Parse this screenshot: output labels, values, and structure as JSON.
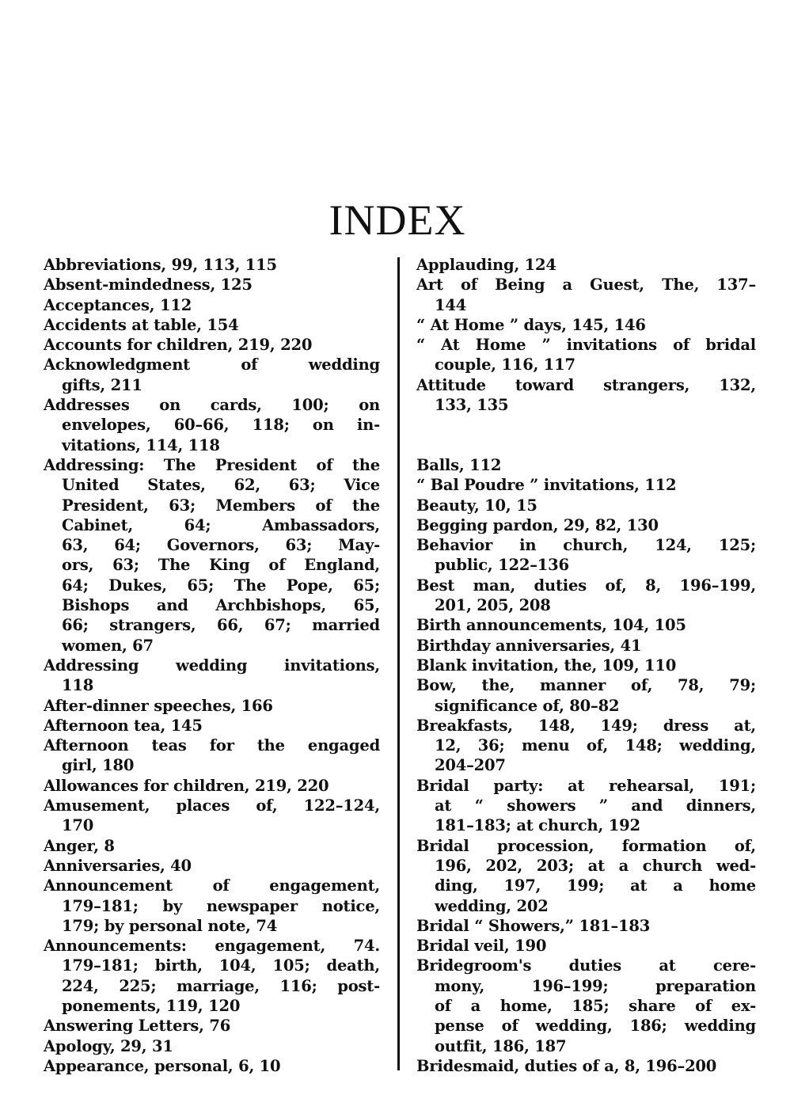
{
  "page": {
    "title": "INDEX"
  },
  "columns": [
    {
      "groups": [
        {
          "entries": [
            {
              "lines": [
                "Abbreviations, 99, 113, 115"
              ]
            },
            {
              "lines": [
                "Absent-mindedness, 125"
              ]
            },
            {
              "lines": [
                "Acceptances, 112"
              ]
            },
            {
              "lines": [
                "Accidents at table, 154"
              ]
            },
            {
              "lines": [
                "Accounts for children, 219, 220"
              ]
            },
            {
              "lines": [
                "Acknowledgment of wedding",
                "gifts, 211"
              ]
            },
            {
              "lines": [
                "Addresses on cards, 100; on",
                "envelopes, 60–66, 118; on in-",
                "vitations, 114, 118"
              ]
            },
            {
              "lines": [
                "Addressing: The President of the",
                "United States, 62, 63; Vice",
                "President, 63; Members of the",
                "Cabinet, 64; Ambassadors,",
                "63, 64; Governors, 63; May-",
                "ors, 63; The King of England,",
                "64; Dukes, 65; The Pope, 65;",
                "Bishops and Archbishops, 65,",
                "66; strangers, 66, 67; married",
                "women, 67"
              ]
            },
            {
              "lines": [
                "Addressing wedding invitations,",
                "118"
              ]
            },
            {
              "lines": [
                "After-dinner speeches, 166"
              ]
            },
            {
              "lines": [
                "Afternoon tea, 145"
              ]
            },
            {
              "lines": [
                "Afternoon teas for the engaged",
                "girl, 180"
              ]
            },
            {
              "lines": [
                "Allowances for children, 219, 220"
              ]
            },
            {
              "lines": [
                "Amusement, places of, 122–124,",
                "170"
              ]
            },
            {
              "lines": [
                "Anger, 8"
              ]
            },
            {
              "lines": [
                "Anniversaries, 40"
              ]
            },
            {
              "lines": [
                "Announcement of engagement,",
                "179–181; by newspaper notice,",
                "179; by personal note, 74"
              ]
            },
            {
              "lines": [
                "Announcements: engagement, 74.",
                "179–181; birth, 104, 105; death,",
                "224, 225; marriage, 116; post-",
                "ponements, 119, 120"
              ]
            },
            {
              "lines": [
                "Answering Letters, 76"
              ]
            },
            {
              "lines": [
                "Apology, 29, 31"
              ]
            },
            {
              "lines": [
                "Appearance, personal, 6, 10"
              ]
            }
          ]
        }
      ]
    },
    {
      "groups": [
        {
          "entries": [
            {
              "lines": [
                "Applauding, 124"
              ]
            },
            {
              "lines": [
                "Art of Being a Guest, The, 137–",
                "144"
              ]
            },
            {
              "lines": [
                "“ At Home ” days, 145, 146"
              ]
            },
            {
              "lines": [
                "“ At Home ” invitations of bridal",
                "couple, 116, 117"
              ]
            },
            {
              "lines": [
                "Attitude toward strangers, 132,",
                "133, 135"
              ]
            }
          ]
        },
        {
          "entries": [
            {
              "lines": [
                "Balls, 112"
              ]
            },
            {
              "lines": [
                "“ Bal Poudre ” invitations, 112"
              ]
            },
            {
              "lines": [
                "Beauty, 10, 15"
              ]
            },
            {
              "lines": [
                "Begging pardon, 29, 82, 130"
              ]
            },
            {
              "lines": [
                "Behavior in church, 124, 125;",
                "public, 122–136"
              ]
            },
            {
              "lines": [
                "Best man, duties of, 8, 196–199,",
                "201, 205, 208"
              ]
            },
            {
              "lines": [
                "Birth announcements, 104, 105"
              ]
            },
            {
              "lines": [
                "Birthday anniversaries, 41"
              ]
            },
            {
              "lines": [
                "Blank invitation, the, 109, 110"
              ]
            },
            {
              "lines": [
                "Bow, the, manner of, 78, 79;",
                "significance of, 80–82"
              ]
            },
            {
              "lines": [
                "Breakfasts, 148, 149; dress at,",
                "12, 36; menu of, 148; wedding,",
                "204–207"
              ]
            },
            {
              "lines": [
                "Bridal party: at rehearsal, 191;",
                "at “ showers ” and dinners,",
                "181–183; at church, 192"
              ]
            },
            {
              "lines": [
                "Bridal procession, formation of,",
                "196, 202, 203; at a church wed-",
                "ding, 197, 199; at a home",
                "wedding, 202"
              ]
            },
            {
              "lines": [
                "Bridal “ Showers,” 181–183"
              ]
            },
            {
              "lines": [
                "Bridal veil, 190"
              ]
            },
            {
              "lines": [
                "Bridegroom's duties at cere-",
                "mony, 196–199; preparation",
                "of a home, 185; share of ex-",
                "pense of wedding, 186; wedding",
                "outfit, 186, 187"
              ]
            },
            {
              "lines": [
                "Bridesmaid, duties of a, 8, 196–200"
              ]
            }
          ]
        }
      ]
    }
  ]
}
